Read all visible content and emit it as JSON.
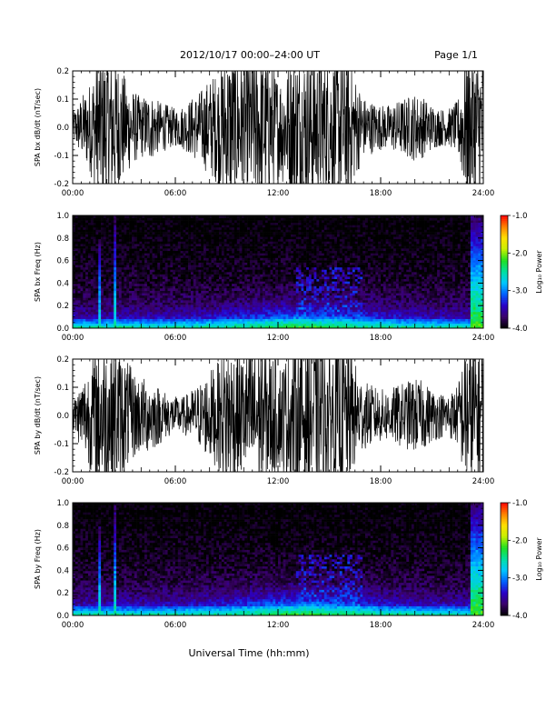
{
  "header": {
    "title": "2012/10/17   00:00–24:00 UT",
    "page_label": "Page 1/1"
  },
  "footer": {
    "xlabel": "Universal Time (hh:mm)"
  },
  "chart_data": [
    {
      "type": "line",
      "title": "",
      "ylabel": "SPA bx dB/dt (nT/sec)",
      "xlabel": "",
      "xlim": [
        "00:00",
        "24:00"
      ],
      "ylim": [
        -0.2,
        0.2
      ],
      "x_ticks": [
        "00:00",
        "06:00",
        "12:00",
        "18:00",
        "24:00"
      ],
      "y_ticks": [
        "-0.2",
        "-0.1",
        "0.0",
        "0.1",
        "0.2"
      ],
      "grid": false,
      "series": [
        {
          "x_hours": [
            0,
            0.5,
            1,
            1.5,
            2,
            2.5,
            3,
            3.5,
            4,
            4.5,
            5,
            5.5,
            6,
            6.5,
            7,
            7.5,
            8,
            8.5,
            9,
            9.5,
            10,
            10.5,
            11,
            11.5,
            12,
            12.5,
            13,
            13.5,
            14,
            14.5,
            15,
            15.5,
            16,
            16.5,
            17,
            17.5,
            18,
            18.5,
            19,
            19.5,
            20,
            20.5,
            21,
            21.5,
            22,
            22.5,
            23,
            23.5,
            24
          ],
          "amplitude": [
            0.04,
            0.08,
            0.12,
            0.2,
            0.2,
            0.2,
            0.14,
            0.1,
            0.08,
            0.09,
            0.07,
            0.06,
            0.05,
            0.06,
            0.08,
            0.1,
            0.13,
            0.15,
            0.2,
            0.2,
            0.18,
            0.2,
            0.2,
            0.18,
            0.14,
            0.16,
            0.2,
            0.2,
            0.2,
            0.2,
            0.18,
            0.2,
            0.2,
            0.14,
            0.08,
            0.07,
            0.06,
            0.06,
            0.07,
            0.08,
            0.09,
            0.08,
            0.06,
            0.05,
            0.05,
            0.07,
            0.2,
            0.2,
            0.2
          ]
        }
      ]
    },
    {
      "type": "heatmap",
      "title": "",
      "ylabel": "SPA bx Freq (Hz)",
      "xlabel": "",
      "xlim": [
        "00:00",
        "24:00"
      ],
      "ylim": [
        0.0,
        1.0
      ],
      "x_ticks": [
        "00:00",
        "06:00",
        "12:00",
        "18:00",
        "24:00"
      ],
      "y_ticks": [
        "0.0",
        "0.2",
        "0.4",
        "0.6",
        "0.8",
        "1.0"
      ],
      "colorbar": {
        "label": "Log₁₀ Power",
        "range": [
          -4.0,
          -1.0
        ],
        "ticks": [
          "-1.0",
          "-2.0",
          "-3.0",
          "-4.0"
        ],
        "colormap": [
          "#000000",
          "#3a006a",
          "#2a00c8",
          "#0060ff",
          "#00c8ff",
          "#00e0a0",
          "#20e020",
          "#c8f000",
          "#ffe000",
          "#ff8000",
          "#ff0000"
        ]
      },
      "features": [
        {
          "kind": "band",
          "start_hour": 1.5,
          "end_hour": 1.6,
          "max_freq": 0.8,
          "level": -2.6
        },
        {
          "kind": "band",
          "start_hour": 2.4,
          "end_hour": 2.6,
          "max_freq": 1.0,
          "level": -2.6
        },
        {
          "kind": "patch",
          "start_hour": 13.0,
          "end_hour": 17.0,
          "max_freq": 0.55,
          "level": -3.0
        },
        {
          "kind": "band",
          "start_hour": 23.2,
          "end_hour": 24.0,
          "max_freq": 1.0,
          "level": -2.2
        },
        {
          "kind": "baseline",
          "start_hour": 0,
          "end_hour": 24,
          "max_freq": 0.08,
          "level": -2.4
        }
      ]
    },
    {
      "type": "line",
      "title": "",
      "ylabel": "SPA by dB/dt (nT/sec)",
      "xlabel": "",
      "xlim": [
        "00:00",
        "24:00"
      ],
      "ylim": [
        -0.2,
        0.2
      ],
      "x_ticks": [
        "00:00",
        "06:00",
        "12:00",
        "18:00",
        "24:00"
      ],
      "y_ticks": [
        "-0.2",
        "-0.1",
        "0.0",
        "0.1",
        "0.2"
      ],
      "grid": false,
      "series": [
        {
          "x_hours": [
            0,
            0.5,
            1,
            1.5,
            2,
            2.5,
            3,
            3.5,
            4,
            4.5,
            5,
            5.5,
            6,
            6.5,
            7,
            7.5,
            8,
            8.5,
            9,
            9.5,
            10,
            10.5,
            11,
            11.5,
            12,
            12.5,
            13,
            13.5,
            14,
            14.5,
            15,
            15.5,
            16,
            16.5,
            17,
            17.5,
            18,
            18.5,
            19,
            19.5,
            20,
            20.5,
            21,
            21.5,
            22,
            22.5,
            23,
            23.5,
            24
          ],
          "amplitude": [
            0.04,
            0.09,
            0.14,
            0.2,
            0.2,
            0.2,
            0.16,
            0.12,
            0.1,
            0.1,
            0.08,
            0.06,
            0.05,
            0.05,
            0.07,
            0.09,
            0.12,
            0.14,
            0.2,
            0.18,
            0.16,
            0.2,
            0.2,
            0.18,
            0.14,
            0.16,
            0.2,
            0.2,
            0.2,
            0.2,
            0.18,
            0.2,
            0.2,
            0.14,
            0.09,
            0.08,
            0.07,
            0.07,
            0.08,
            0.09,
            0.1,
            0.09,
            0.07,
            0.06,
            0.06,
            0.08,
            0.2,
            0.2,
            0.2
          ]
        }
      ]
    },
    {
      "type": "heatmap",
      "title": "",
      "ylabel": "SPA by Freq (Hz)",
      "xlabel": "",
      "xlim": [
        "00:00",
        "24:00"
      ],
      "ylim": [
        0.0,
        1.0
      ],
      "x_ticks": [
        "00:00",
        "06:00",
        "12:00",
        "18:00",
        "24:00"
      ],
      "y_ticks": [
        "0.0",
        "0.2",
        "0.4",
        "0.6",
        "0.8",
        "1.0"
      ],
      "colorbar": {
        "label": "Log₁₀ Power",
        "range": [
          -4.0,
          -1.0
        ],
        "ticks": [
          "-1.0",
          "-2.0",
          "-3.0",
          "-4.0"
        ],
        "colormap": [
          "#000000",
          "#3a006a",
          "#2a00c8",
          "#0060ff",
          "#00c8ff",
          "#00e0a0",
          "#20e020",
          "#c8f000",
          "#ffe000",
          "#ff8000",
          "#ff0000"
        ]
      },
      "features": [
        {
          "kind": "band",
          "start_hour": 1.5,
          "end_hour": 1.6,
          "max_freq": 0.8,
          "level": -2.6
        },
        {
          "kind": "band",
          "start_hour": 2.4,
          "end_hour": 2.6,
          "max_freq": 1.0,
          "level": -2.6
        },
        {
          "kind": "patch",
          "start_hour": 13.0,
          "end_hour": 17.0,
          "max_freq": 0.55,
          "level": -3.0
        },
        {
          "kind": "band",
          "start_hour": 23.2,
          "end_hour": 24.0,
          "max_freq": 1.0,
          "level": -2.2
        },
        {
          "kind": "baseline",
          "start_hour": 0,
          "end_hour": 24,
          "max_freq": 0.08,
          "level": -2.4
        }
      ]
    }
  ]
}
